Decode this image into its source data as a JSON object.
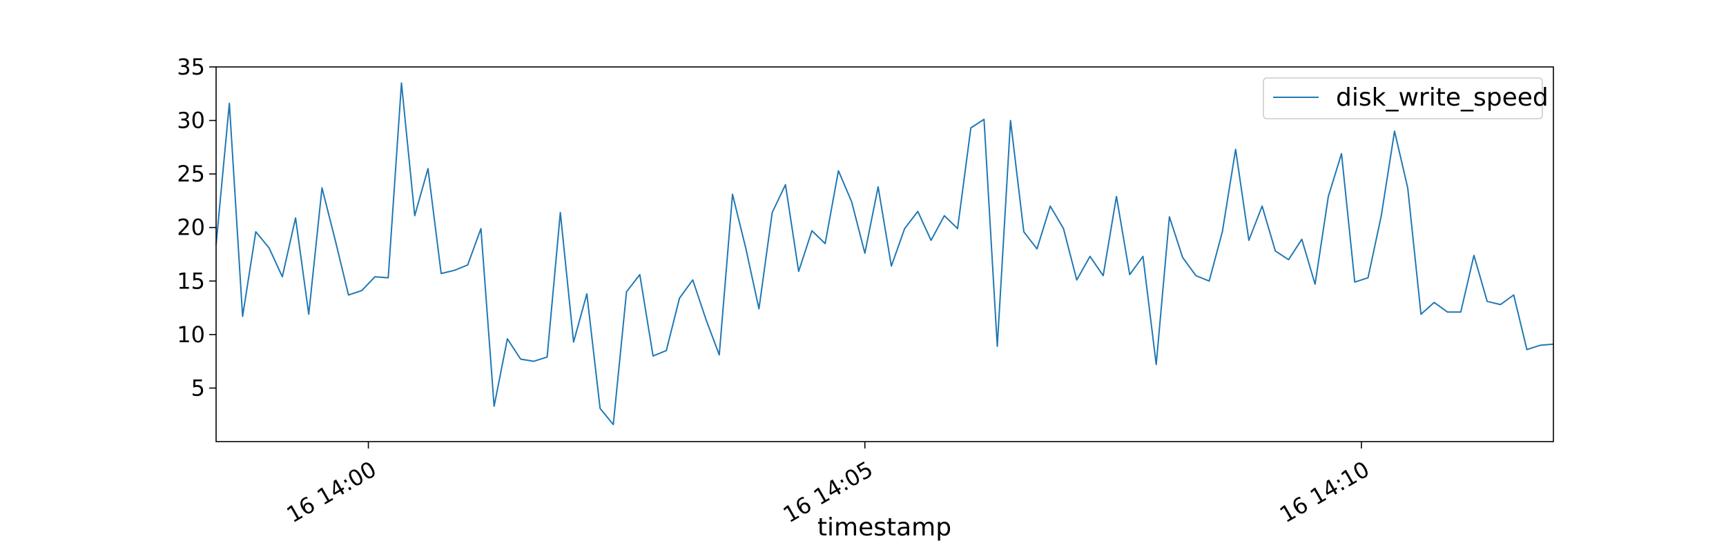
{
  "chart_data": {
    "type": "line",
    "title": "",
    "xlabel": "timestamp",
    "ylabel": "",
    "x": [
      "13:58:28",
      "13:58:36",
      "13:58:44",
      "13:58:52",
      "13:59:00",
      "13:59:08",
      "13:59:16",
      "13:59:24",
      "13:59:32",
      "13:59:40",
      "13:59:48",
      "13:59:56",
      "14:00:04",
      "14:00:12",
      "14:00:20",
      "14:00:28",
      "14:00:36",
      "14:00:44",
      "14:00:52",
      "14:01:00",
      "14:01:08",
      "14:01:16",
      "14:01:24",
      "14:01:32",
      "14:01:40",
      "14:01:48",
      "14:01:56",
      "14:02:04",
      "14:02:12",
      "14:02:20",
      "14:02:28",
      "14:02:36",
      "14:02:44",
      "14:02:52",
      "14:03:00",
      "14:03:08",
      "14:03:16",
      "14:03:24",
      "14:03:32",
      "14:03:40",
      "14:03:48",
      "14:03:56",
      "14:04:04",
      "14:04:12",
      "14:04:20",
      "14:04:28",
      "14:04:36",
      "14:04:44",
      "14:04:52",
      "14:05:00",
      "14:05:08",
      "14:05:16",
      "14:05:24",
      "14:05:32",
      "14:05:40",
      "14:05:48",
      "14:05:56",
      "14:06:04",
      "14:06:12",
      "14:06:20",
      "14:06:28",
      "14:06:36",
      "14:06:44",
      "14:06:52",
      "14:07:00",
      "14:07:08",
      "14:07:16",
      "14:07:24",
      "14:07:32",
      "14:07:40",
      "14:07:48",
      "14:07:56",
      "14:08:04",
      "14:08:12",
      "14:08:20",
      "14:08:28",
      "14:08:36",
      "14:08:44",
      "14:08:52",
      "14:09:00",
      "14:09:08",
      "14:09:16",
      "14:09:24",
      "14:09:32",
      "14:09:40",
      "14:09:48",
      "14:09:56",
      "14:10:04",
      "14:10:12",
      "14:10:20",
      "14:10:28",
      "14:10:36",
      "14:10:44",
      "14:10:52",
      "14:11:00",
      "14:11:08",
      "14:11:16",
      "14:11:24",
      "14:11:32",
      "14:11:40",
      "14:11:48",
      "14:11:56"
    ],
    "series": [
      {
        "name": "disk_write_speed",
        "color": "#1f77b4",
        "values": [
          18.4,
          31.6,
          11.7,
          19.6,
          18.1,
          15.4,
          20.9,
          11.9,
          23.7,
          18.8,
          13.7,
          14.1,
          15.4,
          15.3,
          33.5,
          21.1,
          25.5,
          15.7,
          16.0,
          16.5,
          19.9,
          3.3,
          9.6,
          7.7,
          7.5,
          7.9,
          21.4,
          9.3,
          13.8,
          3.1,
          1.6,
          14.0,
          15.6,
          8.0,
          8.5,
          13.4,
          15.1,
          11.4,
          8.1,
          23.1,
          18.1,
          12.4,
          21.4,
          24.0,
          15.9,
          19.7,
          18.5,
          25.3,
          22.4,
          17.6,
          23.8,
          16.4,
          19.9,
          21.5,
          18.8,
          21.1,
          19.9,
          29.3,
          30.1,
          8.9,
          30.0,
          19.6,
          18.0,
          22.0,
          19.9,
          15.1,
          17.3,
          15.5,
          22.9,
          15.6,
          17.3,
          7.2,
          21.0,
          17.2,
          15.5,
          15.0,
          19.6,
          27.3,
          18.8,
          22.0,
          17.8,
          17.0,
          18.9,
          14.7,
          22.9,
          26.9,
          14.9,
          15.3,
          21.1,
          29.0,
          23.7,
          11.9,
          13.0,
          12.1,
          12.1,
          17.4,
          13.1,
          12.8,
          13.7,
          8.6,
          9.0,
          9.1
        ]
      }
    ],
    "xtick_labels": [
      "16 14:00",
      "16 14:05",
      "16 14:10"
    ],
    "ytick_labels": [
      "5",
      "10",
      "15",
      "20",
      "25",
      "30",
      "35"
    ],
    "yticks": [
      5,
      10,
      15,
      20,
      25,
      30,
      35
    ],
    "ylim": [
      0,
      35
    ],
    "xlim": [
      "13:58:28",
      "14:11:56"
    ],
    "grid": false,
    "legend_position": "upper-right"
  }
}
